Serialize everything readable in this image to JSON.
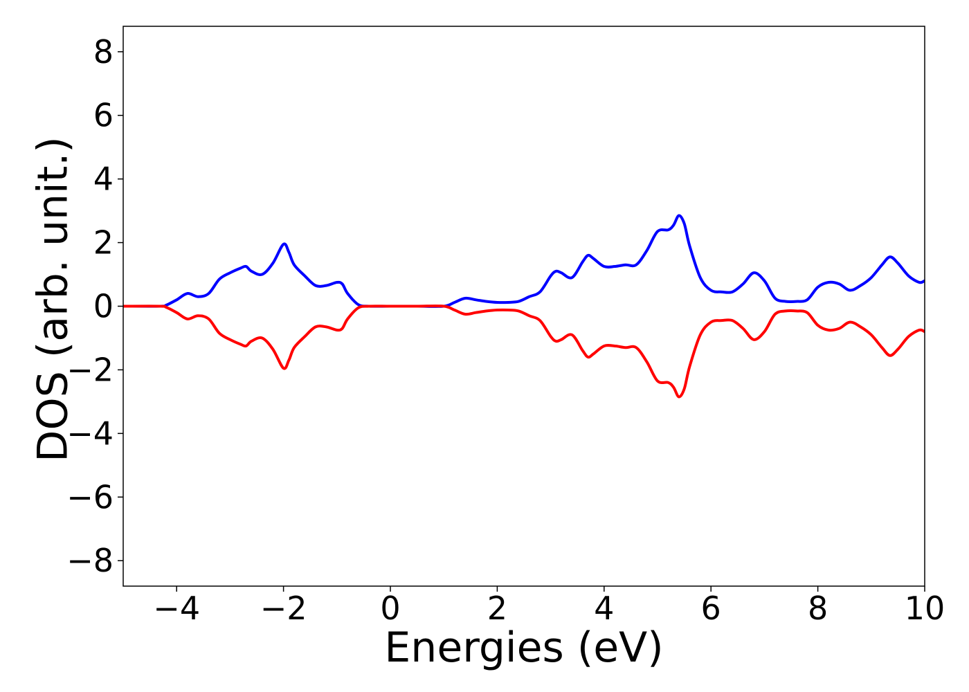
{
  "chart_data": {
    "type": "line",
    "xlabel": "Energies (eV)",
    "ylabel": "DOS (arb. unit.)",
    "xlim": [
      -5,
      10
    ],
    "ylim": [
      -8.8,
      8.8
    ],
    "xticks": [
      -4,
      -2,
      0,
      2,
      4,
      6,
      8,
      10
    ],
    "xtick_labels": [
      "−4",
      "−2",
      "0",
      "2",
      "4",
      "6",
      "8",
      "10"
    ],
    "yticks": [
      8,
      6,
      4,
      2,
      0,
      -2,
      -4,
      -6,
      -8
    ],
    "ytick_labels": [
      "8",
      "6",
      "4",
      "2",
      "0",
      "−2",
      "−4",
      "−6",
      "−8"
    ],
    "grid": false,
    "series": [
      {
        "color": "#0000ff",
        "x": [
          -5,
          -4.3,
          -4.2,
          -4.0,
          -3.8,
          -3.6,
          -3.4,
          -3.2,
          -3.0,
          -2.8,
          -2.7,
          -2.6,
          -2.4,
          -2.2,
          -2.0,
          -1.9,
          -1.8,
          -1.6,
          -1.4,
          -1.2,
          -1.0,
          -0.9,
          -0.8,
          -0.6,
          -0.4,
          0,
          0.5,
          1.0,
          1.2,
          1.4,
          1.6,
          1.8,
          2.0,
          2.2,
          2.4,
          2.6,
          2.8,
          3.0,
          3.1,
          3.2,
          3.4,
          3.6,
          3.7,
          3.8,
          4.0,
          4.2,
          4.4,
          4.6,
          4.8,
          5.0,
          5.2,
          5.3,
          5.4,
          5.5,
          5.6,
          5.8,
          6.0,
          6.2,
          6.4,
          6.6,
          6.8,
          7.0,
          7.2,
          7.4,
          7.6,
          7.8,
          8.0,
          8.2,
          8.4,
          8.6,
          8.8,
          9.0,
          9.2,
          9.35,
          9.5,
          9.7,
          9.9,
          10
        ],
        "y": [
          0.0,
          0.0,
          0.03,
          0.2,
          0.4,
          0.3,
          0.4,
          0.85,
          1.05,
          1.2,
          1.25,
          1.1,
          1.0,
          1.35,
          1.95,
          1.7,
          1.3,
          0.95,
          0.65,
          0.65,
          0.75,
          0.7,
          0.4,
          0.05,
          0.0,
          0.0,
          0.0,
          0.0,
          0.12,
          0.25,
          0.2,
          0.15,
          0.12,
          0.12,
          0.15,
          0.3,
          0.45,
          0.95,
          1.1,
          1.05,
          0.9,
          1.4,
          1.6,
          1.5,
          1.25,
          1.25,
          1.3,
          1.3,
          1.75,
          2.35,
          2.4,
          2.55,
          2.85,
          2.6,
          1.9,
          0.9,
          0.5,
          0.45,
          0.45,
          0.7,
          1.05,
          0.8,
          0.25,
          0.15,
          0.15,
          0.2,
          0.6,
          0.75,
          0.7,
          0.5,
          0.65,
          0.9,
          1.3,
          1.55,
          1.35,
          0.95,
          0.75,
          0.8
        ]
      },
      {
        "color": "#ff0000",
        "x": [
          -5,
          -4.3,
          -4.2,
          -4.0,
          -3.8,
          -3.6,
          -3.4,
          -3.2,
          -3.0,
          -2.8,
          -2.7,
          -2.6,
          -2.4,
          -2.2,
          -2.0,
          -1.9,
          -1.8,
          -1.6,
          -1.4,
          -1.2,
          -1.0,
          -0.9,
          -0.8,
          -0.6,
          -0.4,
          0,
          0.5,
          1.0,
          1.2,
          1.4,
          1.6,
          1.8,
          2.0,
          2.2,
          2.4,
          2.6,
          2.8,
          3.0,
          3.1,
          3.2,
          3.4,
          3.6,
          3.7,
          3.8,
          4.0,
          4.2,
          4.4,
          4.6,
          4.8,
          5.0,
          5.2,
          5.3,
          5.4,
          5.5,
          5.6,
          5.8,
          6.0,
          6.2,
          6.4,
          6.6,
          6.8,
          7.0,
          7.2,
          7.4,
          7.6,
          7.8,
          8.0,
          8.2,
          8.4,
          8.6,
          8.8,
          9.0,
          9.2,
          9.35,
          9.5,
          9.7,
          9.9,
          10
        ],
        "y": [
          0.0,
          0.0,
          -0.03,
          -0.2,
          -0.4,
          -0.3,
          -0.4,
          -0.85,
          -1.05,
          -1.2,
          -1.25,
          -1.1,
          -1.0,
          -1.35,
          -1.95,
          -1.7,
          -1.3,
          -0.95,
          -0.65,
          -0.65,
          -0.75,
          -0.7,
          -0.4,
          -0.05,
          0.0,
          0.0,
          0.0,
          0.0,
          -0.12,
          -0.25,
          -0.2,
          -0.15,
          -0.12,
          -0.12,
          -0.15,
          -0.3,
          -0.45,
          -0.95,
          -1.1,
          -1.05,
          -0.9,
          -1.4,
          -1.6,
          -1.5,
          -1.25,
          -1.25,
          -1.3,
          -1.3,
          -1.75,
          -2.35,
          -2.4,
          -2.55,
          -2.85,
          -2.6,
          -1.9,
          -0.9,
          -0.5,
          -0.45,
          -0.45,
          -0.7,
          -1.05,
          -0.8,
          -0.25,
          -0.15,
          -0.15,
          -0.2,
          -0.6,
          -0.75,
          -0.7,
          -0.5,
          -0.65,
          -0.9,
          -1.3,
          -1.55,
          -1.35,
          -0.95,
          -0.75,
          -0.8
        ]
      }
    ]
  }
}
